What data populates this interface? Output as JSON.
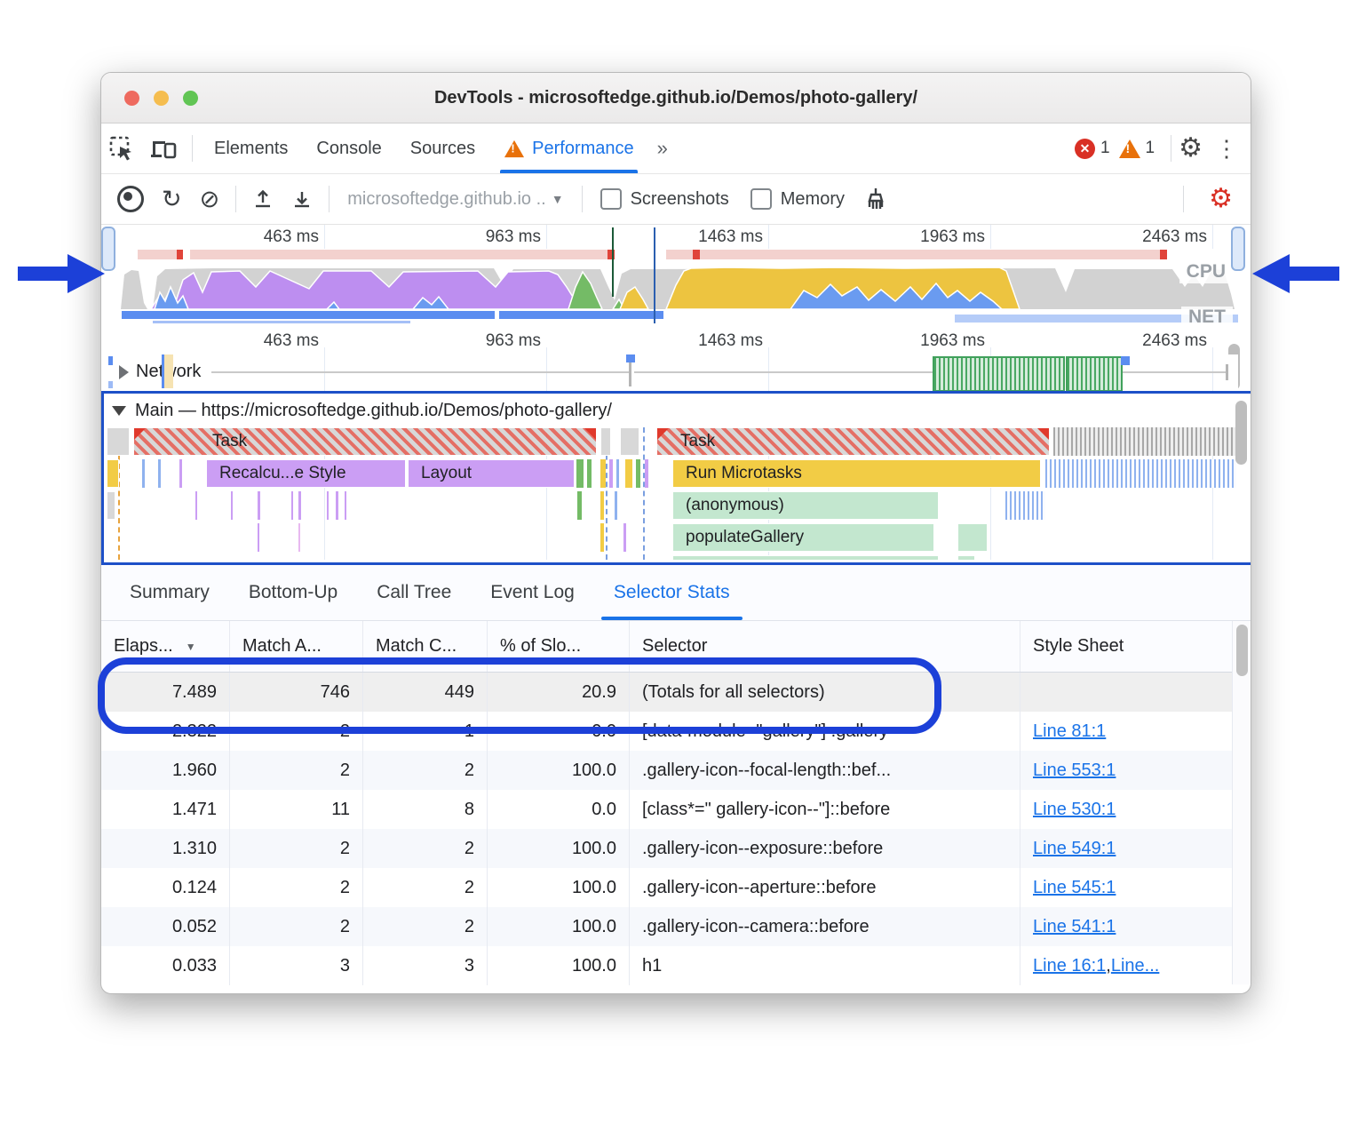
{
  "window": {
    "title": "DevTools - microsoftedge.github.io/Demos/photo-gallery/"
  },
  "devtools_tabs": {
    "items": [
      "Elements",
      "Console",
      "Sources",
      "Performance"
    ],
    "active": "Performance",
    "overflow_chevron": "»",
    "error_count": "1",
    "warning_count": "1"
  },
  "toolbar": {
    "history_dropdown": "microsoftedge.github.io ..",
    "screenshots_label": "Screenshots",
    "memory_label": "Memory"
  },
  "minimap": {
    "ticks": [
      "463 ms",
      "963 ms",
      "1463 ms",
      "1963 ms",
      "2463 ms"
    ],
    "cpu_label": "CPU",
    "net_label": "NET"
  },
  "network_track": {
    "label": "Network"
  },
  "main_track": {
    "label": "Main — https://microsoftedge.github.io/Demos/photo-gallery/",
    "frames": {
      "task1": "Task",
      "task2": "Task",
      "recalc": "Recalcu...e Style",
      "layout": "Layout",
      "microtasks": "Run Microtasks",
      "anonymous": "(anonymous)",
      "populate": "populateGallery"
    }
  },
  "bottom_tabs": {
    "items": [
      "Summary",
      "Bottom-Up",
      "Call Tree",
      "Event Log",
      "Selector Stats"
    ],
    "active": "Selector Stats"
  },
  "selector_stats": {
    "columns": [
      "Elaps...",
      "Match A...",
      "Match C...",
      "% of Slo...",
      "Selector",
      "Style Sheet"
    ],
    "sort_column_index": 0,
    "rows": [
      {
        "elapsed": "7.489",
        "match_attempts": "746",
        "match_count": "449",
        "pct_slow": "20.9",
        "selector": "(Totals for all selectors)",
        "style_sheet": [],
        "highlighted": true
      },
      {
        "elapsed": "2.322",
        "match_attempts": "2",
        "match_count": "1",
        "pct_slow": "0.0",
        "selector": "[data-module=\"gallery\"] .gallery",
        "style_sheet": [
          "Line 81:1"
        ]
      },
      {
        "elapsed": "1.960",
        "match_attempts": "2",
        "match_count": "2",
        "pct_slow": "100.0",
        "selector": ".gallery-icon--focal-length::bef...",
        "style_sheet": [
          "Line 553:1"
        ]
      },
      {
        "elapsed": "1.471",
        "match_attempts": "11",
        "match_count": "8",
        "pct_slow": "0.0",
        "selector": "[class*=\" gallery-icon--\"]::before",
        "style_sheet": [
          "Line 530:1"
        ]
      },
      {
        "elapsed": "1.310",
        "match_attempts": "2",
        "match_count": "2",
        "pct_slow": "100.0",
        "selector": ".gallery-icon--exposure::before",
        "style_sheet": [
          "Line 549:1"
        ]
      },
      {
        "elapsed": "0.124",
        "match_attempts": "2",
        "match_count": "2",
        "pct_slow": "100.0",
        "selector": ".gallery-icon--aperture::before",
        "style_sheet": [
          "Line 545:1"
        ]
      },
      {
        "elapsed": "0.052",
        "match_attempts": "2",
        "match_count": "2",
        "pct_slow": "100.0",
        "selector": ".gallery-icon--camera::before",
        "style_sheet": [
          "Line 541:1"
        ]
      },
      {
        "elapsed": "0.033",
        "match_attempts": "3",
        "match_count": "3",
        "pct_slow": "100.0",
        "selector": "h1",
        "style_sheet": [
          "Line 16:1",
          "Line..."
        ]
      }
    ]
  },
  "colors": {
    "accent_blue": "#1a73e8",
    "annotation_blue": "#1c40d8",
    "error_red": "#d93025",
    "warning_orange": "#e8710a",
    "cpu_scripting_yellow": "#edc440",
    "cpu_rendering_purple": "#bd8ef0",
    "cpu_painting_green": "#74bb66",
    "cpu_loading_blue": "#6a9bf0",
    "cpu_system_gray": "#d2d2d2"
  }
}
